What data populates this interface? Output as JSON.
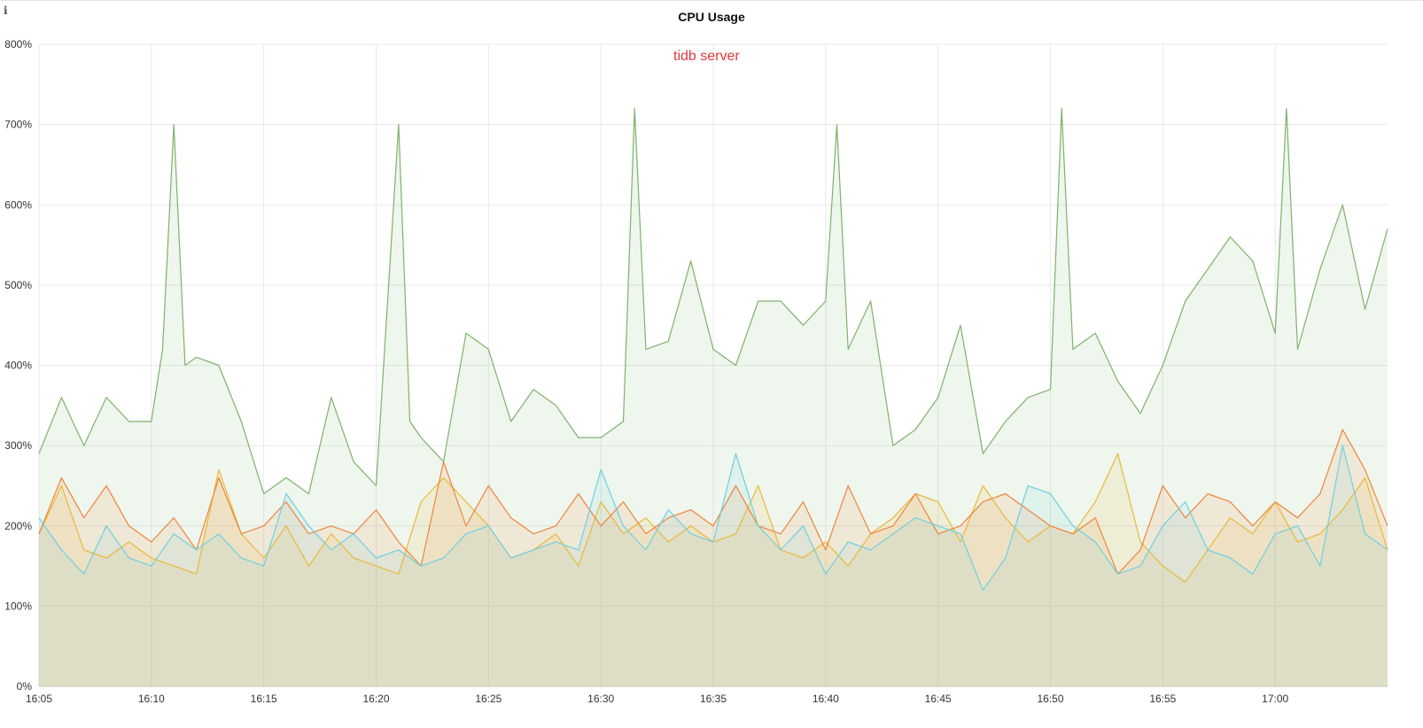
{
  "panel": {
    "title": "CPU Usage",
    "info_icon": "info-icon",
    "annotation": "tidb server",
    "annotation_color": "#e0393e"
  },
  "chart_data": {
    "type": "area",
    "title": "CPU Usage",
    "annotation": "tidb server",
    "y_unit": "%",
    "ylim": [
      0,
      800
    ],
    "y_ticks": [
      "0%",
      "100%",
      "200%",
      "300%",
      "400%",
      "500%",
      "600%",
      "700%",
      "800%"
    ],
    "x_ticks": [
      "16:05",
      "16:10",
      "16:15",
      "16:20",
      "16:25",
      "16:30",
      "16:35",
      "16:40",
      "16:45",
      "16:50",
      "16:55",
      "17:00"
    ],
    "x_range": [
      "16:05",
      "17:05"
    ],
    "grid": true,
    "legend": "none",
    "series": [
      {
        "color": "#7eb26d",
        "x": [
          "16:05",
          "16:06",
          "16:07",
          "16:08",
          "16:09",
          "16:10",
          "16:10:30",
          "16:11",
          "16:11:30",
          "16:12",
          "16:13",
          "16:14",
          "16:15",
          "16:16",
          "16:17",
          "16:18",
          "16:19",
          "16:20",
          "16:21",
          "16:21:30",
          "16:22",
          "16:23",
          "16:24",
          "16:25",
          "16:26",
          "16:27",
          "16:28",
          "16:29",
          "16:30",
          "16:31",
          "16:31:30",
          "16:32",
          "16:33",
          "16:34",
          "16:35",
          "16:36",
          "16:37",
          "16:38",
          "16:39",
          "16:40",
          "16:40:30",
          "16:41",
          "16:42",
          "16:43",
          "16:44",
          "16:45",
          "16:46",
          "16:47",
          "16:48",
          "16:49",
          "16:50",
          "16:50:30",
          "16:51",
          "16:52",
          "16:53",
          "16:54",
          "16:55",
          "16:56",
          "16:57",
          "16:58",
          "16:59",
          "17:00",
          "17:00:30",
          "17:01",
          "17:02",
          "17:03",
          "17:04",
          "17:05"
        ],
        "values": [
          290,
          360,
          300,
          360,
          330,
          330,
          420,
          700,
          400,
          410,
          400,
          330,
          240,
          260,
          240,
          360,
          280,
          250,
          700,
          330,
          310,
          280,
          440,
          420,
          330,
          370,
          350,
          310,
          310,
          330,
          720,
          420,
          430,
          530,
          420,
          400,
          480,
          480,
          450,
          480,
          700,
          420,
          480,
          300,
          320,
          360,
          450,
          290,
          330,
          360,
          370,
          720,
          420,
          440,
          380,
          340,
          400,
          480,
          520,
          560,
          530,
          440,
          720,
          420,
          520,
          600,
          470,
          570
        ]
      },
      {
        "color": "#eab839",
        "x": [
          "16:05",
          "16:06",
          "16:07",
          "16:08",
          "16:09",
          "16:10",
          "16:11",
          "16:12",
          "16:13",
          "16:14",
          "16:15",
          "16:16",
          "16:17",
          "16:18",
          "16:19",
          "16:20",
          "16:21",
          "16:22",
          "16:23",
          "16:24",
          "16:25",
          "16:26",
          "16:27",
          "16:28",
          "16:29",
          "16:30",
          "16:31",
          "16:32",
          "16:33",
          "16:34",
          "16:35",
          "16:36",
          "16:37",
          "16:38",
          "16:39",
          "16:40",
          "16:41",
          "16:42",
          "16:43",
          "16:44",
          "16:45",
          "16:46",
          "16:47",
          "16:48",
          "16:49",
          "16:50",
          "16:51",
          "16:52",
          "16:53",
          "16:54",
          "16:55",
          "16:56",
          "16:57",
          "16:58",
          "16:59",
          "17:00",
          "17:01",
          "17:02",
          "17:03",
          "17:04",
          "17:05"
        ],
        "values": [
          190,
          250,
          170,
          160,
          180,
          160,
          150,
          140,
          270,
          190,
          160,
          200,
          150,
          190,
          160,
          150,
          140,
          230,
          260,
          230,
          200,
          160,
          170,
          190,
          150,
          230,
          190,
          210,
          180,
          200,
          180,
          190,
          250,
          170,
          160,
          180,
          150,
          190,
          210,
          240,
          230,
          180,
          250,
          210,
          180,
          200,
          190,
          230,
          290,
          180,
          150,
          130,
          170,
          210,
          190,
          230,
          180,
          190,
          220,
          260,
          170
        ]
      },
      {
        "color": "#ef843c",
        "x": [
          "16:05",
          "16:06",
          "16:07",
          "16:08",
          "16:09",
          "16:10",
          "16:11",
          "16:12",
          "16:13",
          "16:14",
          "16:15",
          "16:16",
          "16:17",
          "16:18",
          "16:19",
          "16:20",
          "16:21",
          "16:22",
          "16:23",
          "16:24",
          "16:25",
          "16:26",
          "16:27",
          "16:28",
          "16:29",
          "16:30",
          "16:31",
          "16:32",
          "16:33",
          "16:34",
          "16:35",
          "16:36",
          "16:37",
          "16:38",
          "16:39",
          "16:40",
          "16:41",
          "16:42",
          "16:43",
          "16:44",
          "16:45",
          "16:46",
          "16:47",
          "16:48",
          "16:49",
          "16:50",
          "16:51",
          "16:52",
          "16:53",
          "16:54",
          "16:55",
          "16:56",
          "16:57",
          "16:58",
          "16:59",
          "17:00",
          "17:01",
          "17:02",
          "17:03",
          "17:04",
          "17:05"
        ],
        "values": [
          190,
          260,
          210,
          250,
          200,
          180,
          210,
          170,
          260,
          190,
          200,
          230,
          190,
          200,
          190,
          220,
          180,
          150,
          280,
          200,
          250,
          210,
          190,
          200,
          240,
          200,
          230,
          190,
          210,
          220,
          200,
          250,
          200,
          190,
          230,
          170,
          250,
          190,
          200,
          240,
          190,
          200,
          230,
          240,
          220,
          200,
          190,
          210,
          140,
          170,
          250,
          210,
          240,
          230,
          200,
          230,
          210,
          240,
          320,
          270,
          200
        ]
      },
      {
        "color": "#6ed0e0",
        "x": [
          "16:05",
          "16:06",
          "16:07",
          "16:08",
          "16:09",
          "16:10",
          "16:11",
          "16:12",
          "16:13",
          "16:14",
          "16:15",
          "16:16",
          "16:17",
          "16:18",
          "16:19",
          "16:20",
          "16:21",
          "16:22",
          "16:23",
          "16:24",
          "16:25",
          "16:26",
          "16:27",
          "16:28",
          "16:29",
          "16:30",
          "16:31",
          "16:32",
          "16:33",
          "16:34",
          "16:35",
          "16:36",
          "16:37",
          "16:38",
          "16:39",
          "16:40",
          "16:41",
          "16:42",
          "16:43",
          "16:44",
          "16:45",
          "16:46",
          "16:47",
          "16:48",
          "16:49",
          "16:50",
          "16:51",
          "16:52",
          "16:53",
          "16:54",
          "16:55",
          "16:56",
          "16:57",
          "16:58",
          "16:59",
          "17:00",
          "17:01",
          "17:02",
          "17:03",
          "17:04",
          "17:05"
        ],
        "values": [
          210,
          170,
          140,
          200,
          160,
          150,
          190,
          170,
          190,
          160,
          150,
          240,
          200,
          170,
          190,
          160,
          170,
          150,
          160,
          190,
          200,
          160,
          170,
          180,
          170,
          270,
          200,
          170,
          220,
          190,
          180,
          290,
          200,
          170,
          200,
          140,
          180,
          170,
          190,
          210,
          200,
          190,
          120,
          160,
          250,
          240,
          200,
          180,
          140,
          150,
          200,
          230,
          170,
          160,
          140,
          190,
          200,
          150,
          300,
          190,
          170
        ]
      }
    ]
  }
}
